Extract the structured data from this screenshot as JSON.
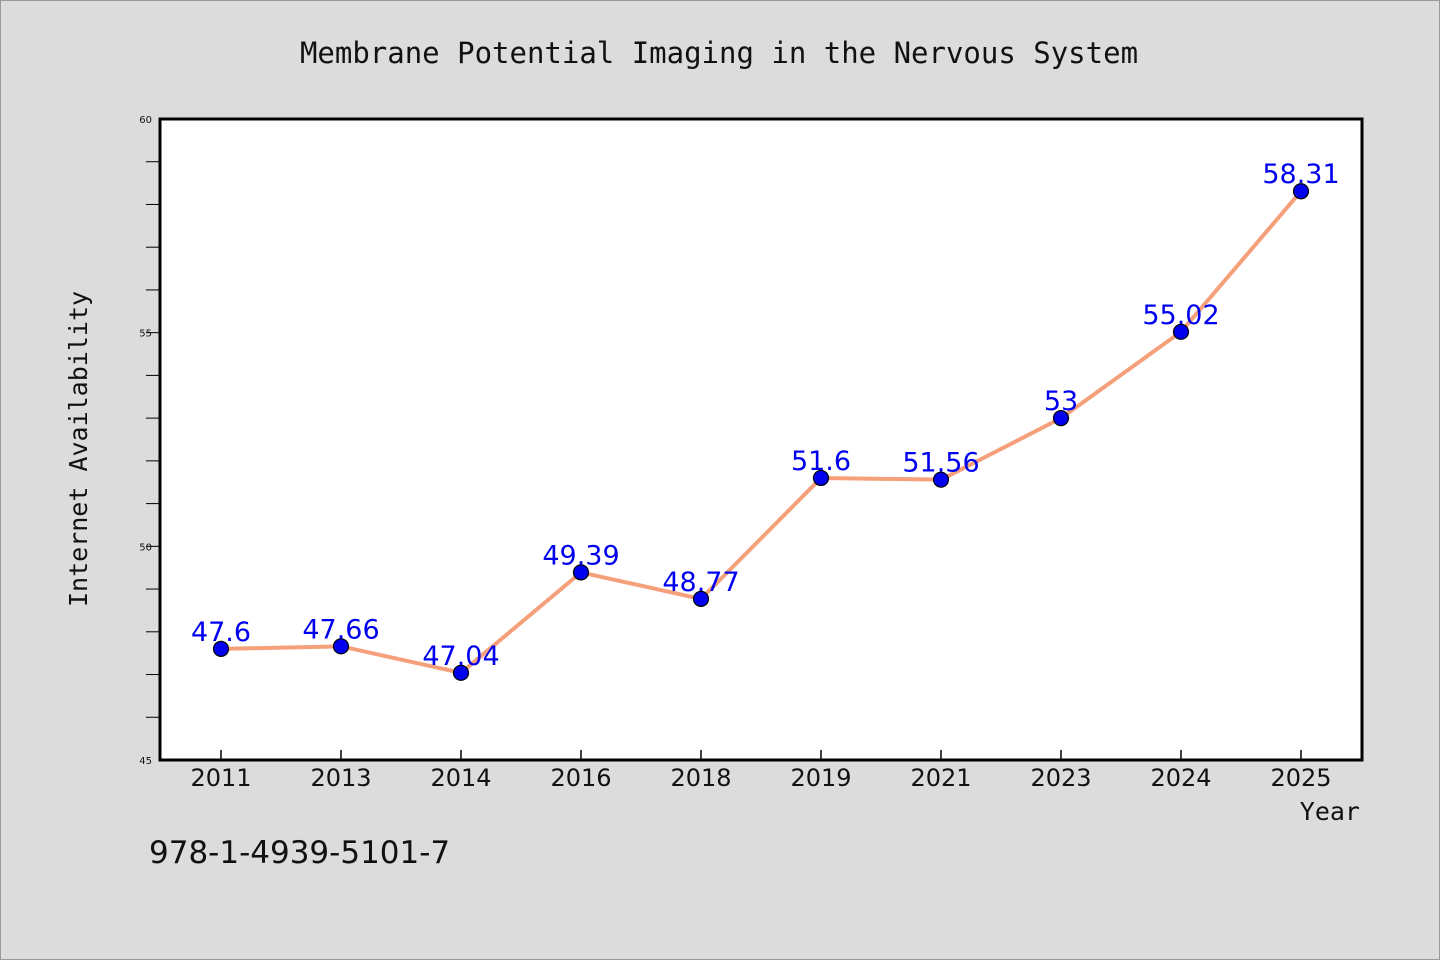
{
  "chart_data": {
    "type": "line",
    "title": "Membrane Potential Imaging in the Nervous System",
    "xlabel": "Year",
    "ylabel": "Internet Availability",
    "categories": [
      "2011",
      "2013",
      "2014",
      "2016",
      "2018",
      "2019",
      "2021",
      "2023",
      "2024",
      "2025"
    ],
    "series": [
      {
        "values": [
          47.6,
          47.66,
          47.04,
          49.39,
          48.77,
          51.6,
          51.56,
          53,
          55.02,
          58.31
        ],
        "data_labels": [
          "47.6",
          "47.66",
          "47.04",
          "49.39",
          "48.77",
          "51.6",
          "51.56",
          "53",
          "55.02",
          "58.31"
        ],
        "line_color": "#f5a07a",
        "marker_color": "#0000ee",
        "label_color": "#0000ee"
      }
    ],
    "ylim": [
      45,
      60
    ],
    "y_ticks": [
      "45",
      "50",
      "55",
      "60"
    ],
    "grid": false,
    "legend": "none"
  },
  "footer": {
    "isbn": "978-1-4939-5101-7"
  },
  "colors": {
    "background": "#dcdcdc",
    "plot_background": "#ffffff",
    "axis": "#000000"
  }
}
